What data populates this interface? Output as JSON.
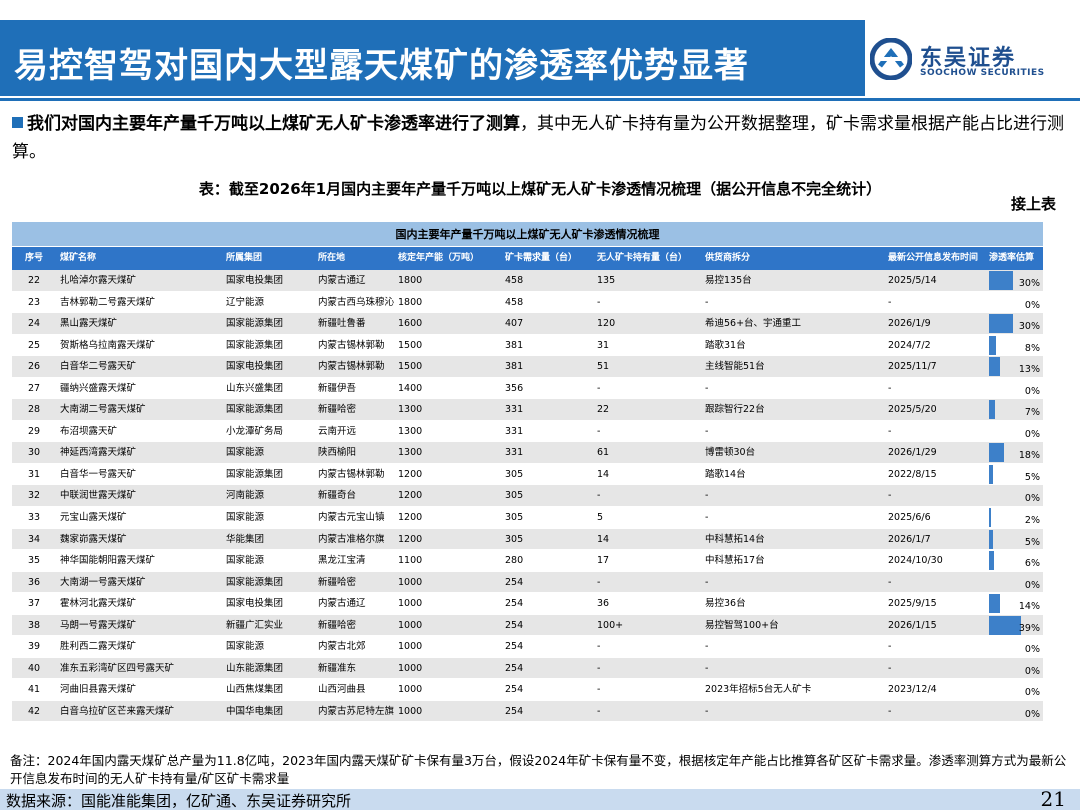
{
  "header": {
    "title": "易控智驾对国内大型露天煤矿的渗透率优势显著",
    "logo_cn": "东吴证券",
    "logo_en": "SOOCHOW SECURITIES",
    "accent_color": "#1f6fb8"
  },
  "intro": {
    "bold": "我们对国内主要年产量千万吨以上煤矿无人矿卡渗透率进行了测算",
    "rest": "，其中无人矿卡持有量为公开数据整理，矿卡需求量根据产能占比进行测算。"
  },
  "table_title": "表：截至2026年1月国内主要年产量千万吨以上煤矿无人矿卡渗透情况梳理（据公开信息不完全统计）",
  "continued_label": "接上表",
  "table": {
    "caption": "国内主要年产量千万吨以上煤矿无人矿卡渗透情况梳理",
    "headers": [
      "序号",
      "煤矿名称",
      "所属集团",
      "所在地",
      "核定年产能（万吨）",
      "矿卡需求量（台）",
      "无人矿卡持有量（台）",
      "供货商拆分",
      "最新公开信息发布时间",
      "渗透率估算"
    ],
    "rows": [
      {
        "no": "22",
        "name": "扎哈淖尔露天煤矿",
        "group": "国家电投集团",
        "loc": "内蒙古通辽",
        "cap": "1800",
        "demand": "458",
        "own": "135",
        "supplier": "易控135台",
        "date": "2025/5/14",
        "pct": "30%",
        "rate": 0.3
      },
      {
        "no": "23",
        "name": "吉林郭勒二号露天煤矿",
        "group": "辽宁能源",
        "loc": "内蒙古西乌珠穆沁",
        "cap": "1800",
        "demand": "458",
        "own": "-",
        "supplier": "-",
        "date": "-",
        "pct": "0%",
        "rate": 0
      },
      {
        "no": "24",
        "name": "黑山露天煤矿",
        "group": "国家能源集团",
        "loc": "新疆吐鲁番",
        "cap": "1600",
        "demand": "407",
        "own": "120",
        "supplier": "希迪56+台、宇通重工",
        "date": "2026/1/9",
        "pct": "30%",
        "rate": 0.3
      },
      {
        "no": "25",
        "name": "贺斯格乌拉南露天煤矿",
        "group": "国家能源集团",
        "loc": "内蒙古锡林郭勒",
        "cap": "1500",
        "demand": "381",
        "own": "31",
        "supplier": "踏歌31台",
        "date": "2024/7/2",
        "pct": "8%",
        "rate": 0.08
      },
      {
        "no": "26",
        "name": "白音华二号露天矿",
        "group": "国家电投集团",
        "loc": "内蒙古锡林郭勒",
        "cap": "1500",
        "demand": "381",
        "own": "51",
        "supplier": "主线智能51台",
        "date": "2025/11/7",
        "pct": "13%",
        "rate": 0.13
      },
      {
        "no": "27",
        "name": "疆纳兴盛露天煤矿",
        "group": "山东兴盛集团",
        "loc": "新疆伊吾",
        "cap": "1400",
        "demand": "356",
        "own": "-",
        "supplier": "-",
        "date": "-",
        "pct": "0%",
        "rate": 0
      },
      {
        "no": "28",
        "name": "大南湖二号露天煤矿",
        "group": "国家能源集团",
        "loc": "新疆哈密",
        "cap": "1300",
        "demand": "331",
        "own": "22",
        "supplier": "跟踪智行22台",
        "date": "2025/5/20",
        "pct": "7%",
        "rate": 0.07
      },
      {
        "no": "29",
        "name": "布沼坝露天矿",
        "group": "小龙潭矿务局",
        "loc": "云南开远",
        "cap": "1300",
        "demand": "331",
        "own": "-",
        "supplier": "-",
        "date": "-",
        "pct": "0%",
        "rate": 0
      },
      {
        "no": "30",
        "name": "神延西湾露天煤矿",
        "group": "国家能源",
        "loc": "陕西榆阳",
        "cap": "1300",
        "demand": "331",
        "own": "61",
        "supplier": "博雷顿30台",
        "date": "2026/1/29",
        "pct": "18%",
        "rate": 0.18
      },
      {
        "no": "31",
        "name": "白音华一号露天矿",
        "group": "国家能源集团",
        "loc": "内蒙古锡林郭勒",
        "cap": "1200",
        "demand": "305",
        "own": "14",
        "supplier": "踏歌14台",
        "date": "2022/8/15",
        "pct": "5%",
        "rate": 0.05
      },
      {
        "no": "32",
        "name": "中联润世露天煤矿",
        "group": "河南能源",
        "loc": "新疆奇台",
        "cap": "1200",
        "demand": "305",
        "own": "-",
        "supplier": "-",
        "date": "-",
        "pct": "0%",
        "rate": 0
      },
      {
        "no": "33",
        "name": "元宝山露天煤矿",
        "group": "国家能源",
        "loc": "内蒙古元宝山镇",
        "cap": "1200",
        "demand": "305",
        "own": "5",
        "supplier": "-",
        "date": "2025/6/6",
        "pct": "2%",
        "rate": 0.02
      },
      {
        "no": "34",
        "name": "魏家峁露天煤矿",
        "group": "华能集团",
        "loc": "内蒙古准格尔旗",
        "cap": "1200",
        "demand": "305",
        "own": "14",
        "supplier": "中科慧拓14台",
        "date": "2026/1/7",
        "pct": "5%",
        "rate": 0.05
      },
      {
        "no": "35",
        "name": "神华国能朝阳露天煤矿",
        "group": "国家能源",
        "loc": "黑龙江宝清",
        "cap": "1100",
        "demand": "280",
        "own": "17",
        "supplier": "中科慧拓17台",
        "date": "2024/10/30",
        "pct": "6%",
        "rate": 0.06
      },
      {
        "no": "36",
        "name": "大南湖一号露天煤矿",
        "group": "国家能源集团",
        "loc": "新疆哈密",
        "cap": "1000",
        "demand": "254",
        "own": "-",
        "supplier": "-",
        "date": "-",
        "pct": "0%",
        "rate": 0
      },
      {
        "no": "37",
        "name": "霍林河北露天煤矿",
        "group": "国家电投集团",
        "loc": "内蒙古通辽",
        "cap": "1000",
        "demand": "254",
        "own": "36",
        "supplier": "易控36台",
        "date": "2025/9/15",
        "pct": "14%",
        "rate": 0.14
      },
      {
        "no": "38",
        "name": "马朗一号露天煤矿",
        "group": "新疆广汇实业",
        "loc": "新疆哈密",
        "cap": "1000",
        "demand": "254",
        "own": "100+",
        "supplier": "易控智驾100+台",
        "date": "2026/1/15",
        "pct": "39%",
        "rate": 0.39
      },
      {
        "no": "39",
        "name": "胜利西二露天煤矿",
        "group": "国家能源",
        "loc": "内蒙古北郊",
        "cap": "1000",
        "demand": "254",
        "own": "-",
        "supplier": "-",
        "date": "-",
        "pct": "0%",
        "rate": 0
      },
      {
        "no": "40",
        "name": "准东五彩湾矿区四号露天矿",
        "group": "山东能源集团",
        "loc": "新疆准东",
        "cap": "1000",
        "demand": "254",
        "own": "-",
        "supplier": "-",
        "date": "-",
        "pct": "0%",
        "rate": 0
      },
      {
        "no": "41",
        "name": "河曲旧县露天煤矿",
        "group": "山西焦煤集团",
        "loc": "山西河曲县",
        "cap": "1000",
        "demand": "254",
        "own": "-",
        "supplier": "2023年招标5台无人矿卡",
        "date": "2023/12/4",
        "pct": "0%",
        "rate": 0
      },
      {
        "no": "42",
        "name": "白音乌拉矿区芒来露天煤矿",
        "group": "中国华电集团",
        "loc": "内蒙古苏尼特左旗",
        "cap": "1000",
        "demand": "254",
        "own": "-",
        "supplier": "-",
        "date": "-",
        "pct": "0%",
        "rate": 0
      }
    ]
  },
  "note": "备注：2024年国内露天煤矿总产量为11.8亿吨，2023年国内露天煤矿矿卡保有量3万台，假设2024年矿卡保有量不变，根据核定年产能占比推算各矿区矿卡需求量。渗透率测算方式为最新公开信息发布时间的无人矿卡持有量/矿区矿卡需求量",
  "footer": {
    "source": "数据来源：国能准能集团，亿矿通、东吴证券研究所",
    "page": "21"
  }
}
